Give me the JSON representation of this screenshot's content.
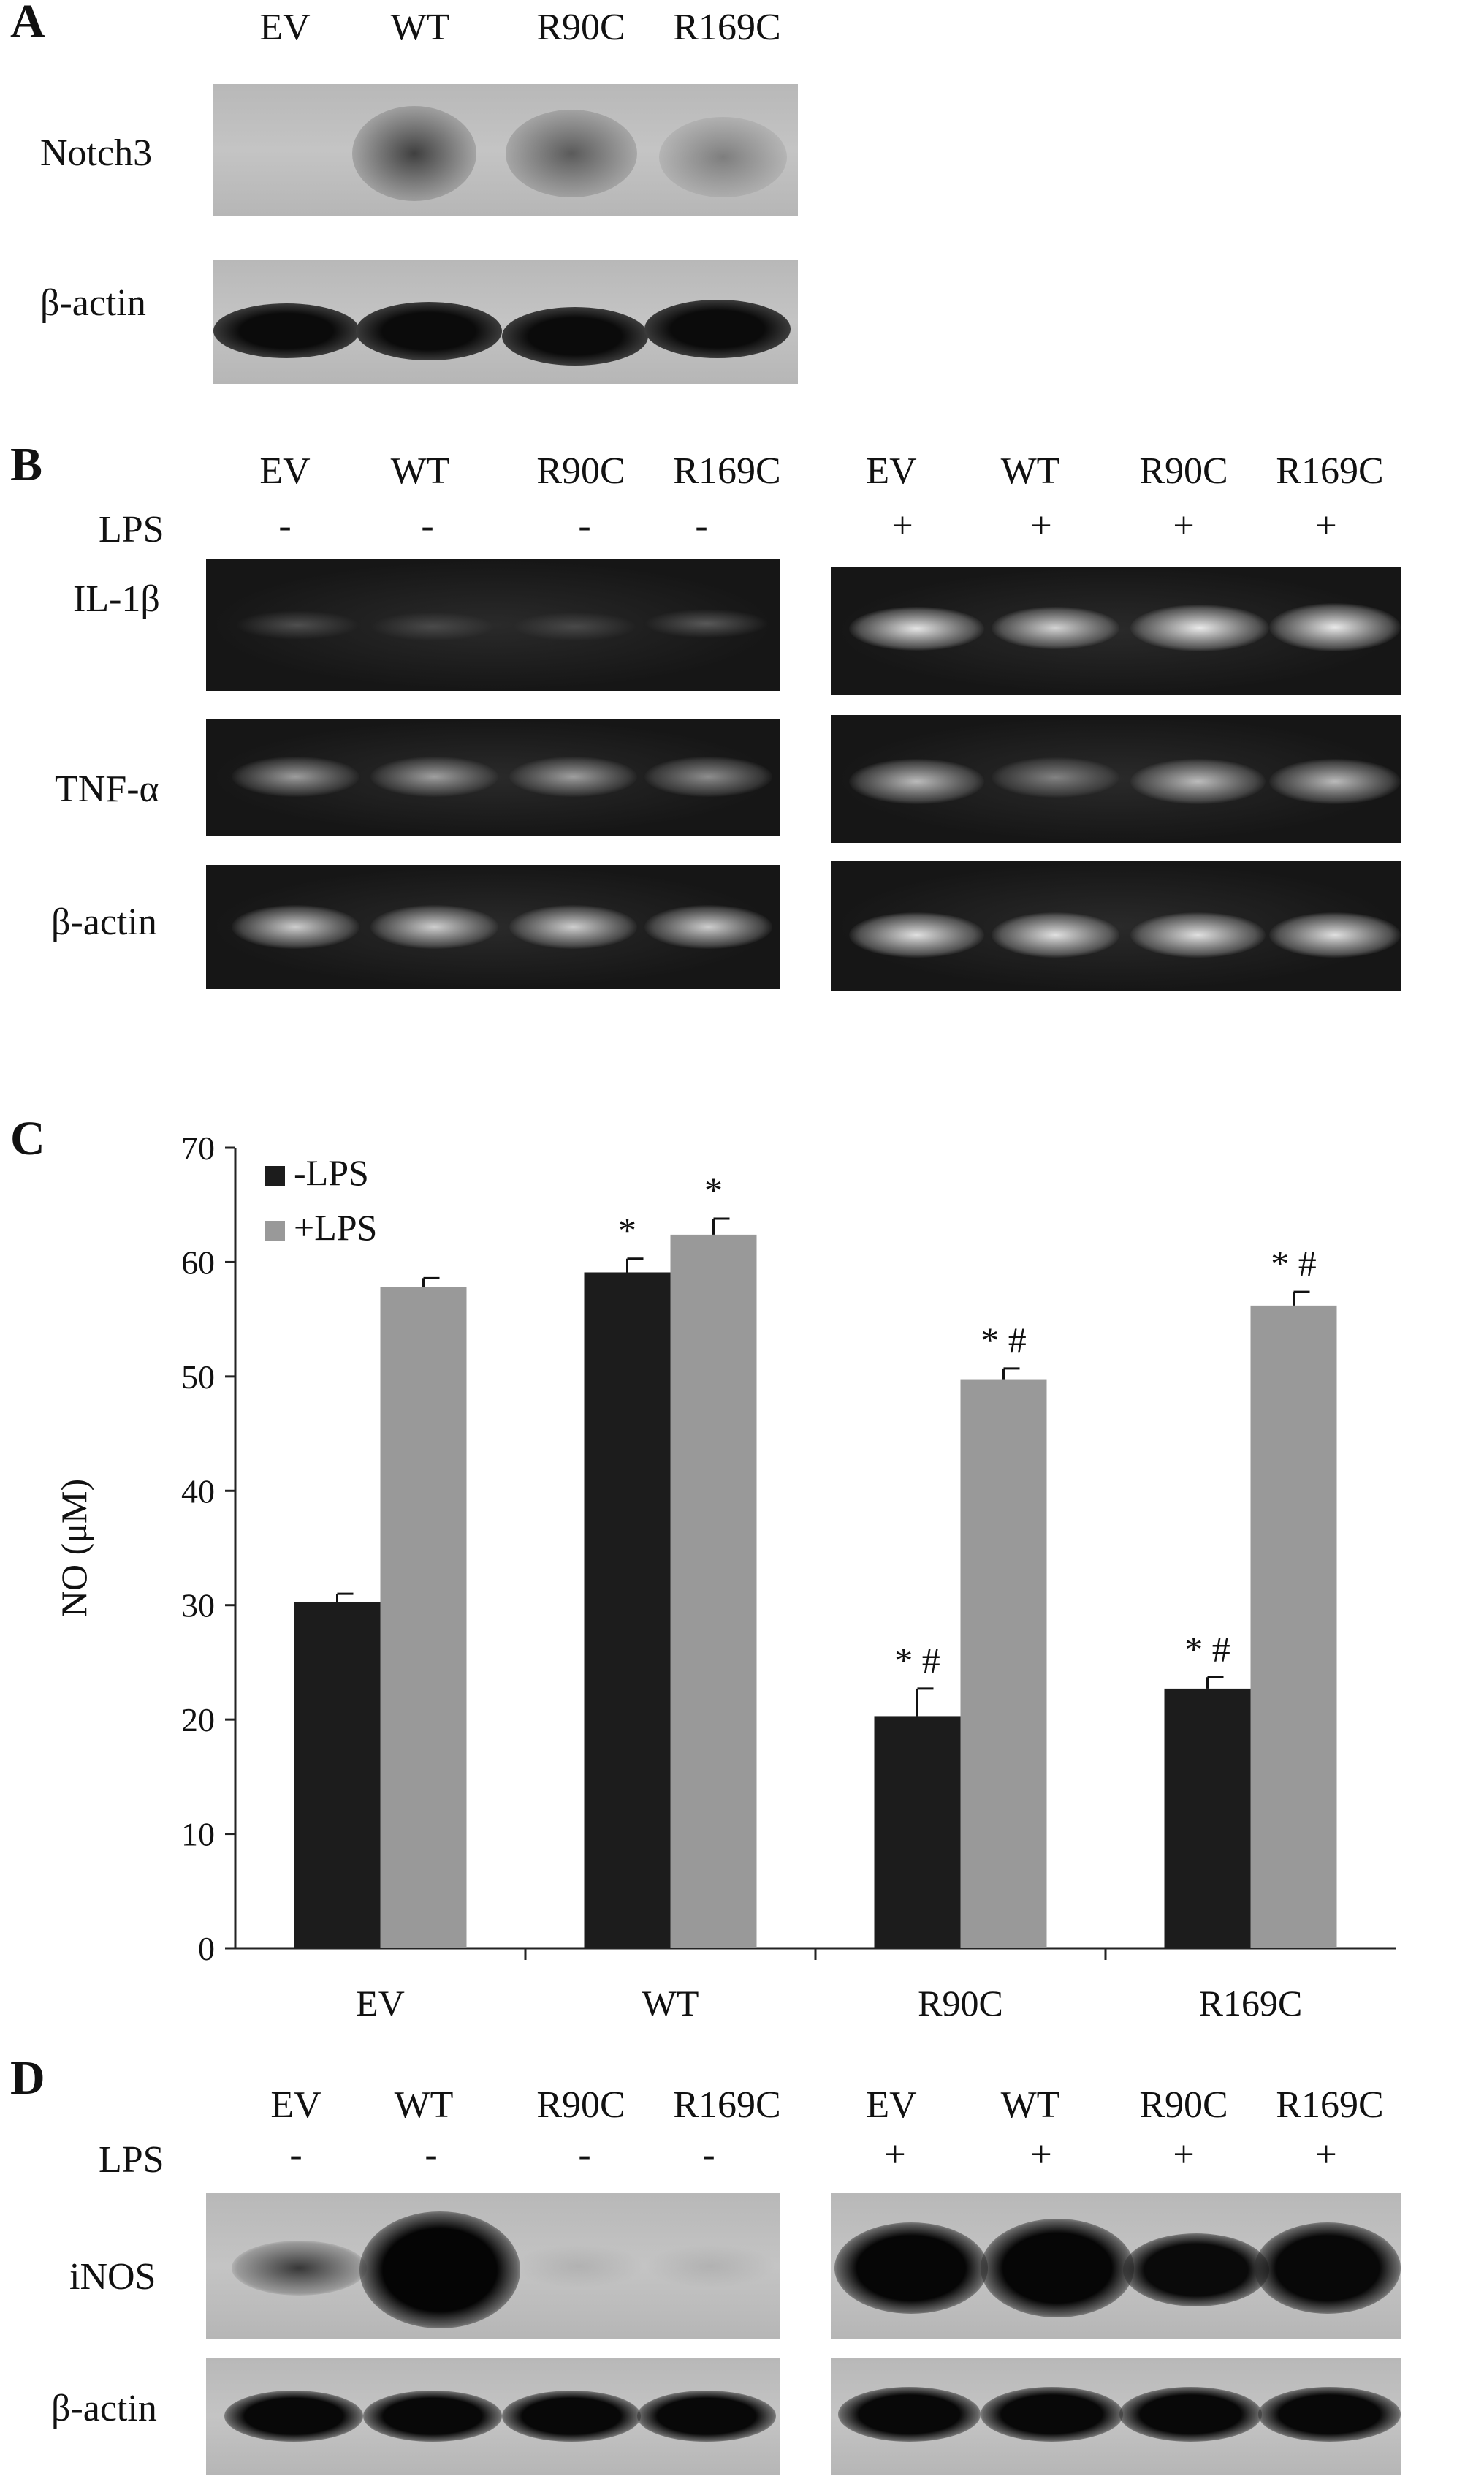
{
  "panels": {
    "A": {
      "letter": "A",
      "lanes": [
        "EV",
        "WT",
        "R90C",
        "R169C"
      ],
      "rows": [
        "Notch3",
        "β-actin"
      ]
    },
    "B": {
      "letter": "B",
      "lanes_left": [
        "EV",
        "WT",
        "R90C",
        "R169C"
      ],
      "lanes_right": [
        "EV",
        "WT",
        "R90C",
        "R169C"
      ],
      "lps_label": "LPS",
      "lps_left": [
        "-",
        "-",
        "-",
        "-"
      ],
      "lps_right": [
        "+",
        "+",
        "+",
        "+"
      ],
      "rows": [
        "IL-1β",
        "TNF-α",
        "β-actin"
      ]
    },
    "C": {
      "letter": "C"
    },
    "D": {
      "letter": "D",
      "lanes_left": [
        "EV",
        "WT",
        "R90C",
        "R169C"
      ],
      "lanes_right": [
        "EV",
        "WT",
        "R90C",
        "R169C"
      ],
      "lps_label": "LPS",
      "lps_left": [
        "-",
        "-",
        "-",
        "-"
      ],
      "lps_right": [
        "+",
        "+",
        "+",
        "+"
      ],
      "rows": [
        "iNOS",
        "β-actin"
      ]
    }
  },
  "chart_data": {
    "type": "bar",
    "categories": [
      "EV",
      "WT",
      "R90C",
      "R169C"
    ],
    "series": [
      {
        "name": "-LPS",
        "color": "#1c1c1c",
        "values": [
          30.3,
          59.1,
          20.3,
          22.7
        ],
        "errors": [
          0.7,
          1.2,
          2.4,
          1.0
        ],
        "annotations": [
          "",
          "*",
          "* #",
          "* #"
        ]
      },
      {
        "name": "+LPS",
        "color": "#999999",
        "values": [
          57.8,
          62.4,
          49.7,
          56.2
        ],
        "errors": [
          0.8,
          1.4,
          1.0,
          1.2
        ],
        "annotations": [
          "",
          "*",
          "* #",
          "* #"
        ]
      }
    ],
    "ylabel": "NO (μM)",
    "xlabel": "",
    "title": "",
    "ylim": [
      0,
      70
    ],
    "yticks": [
      0,
      10,
      20,
      30,
      40,
      50,
      60,
      70
    ],
    "legend": "top-left",
    "grid": false
  }
}
